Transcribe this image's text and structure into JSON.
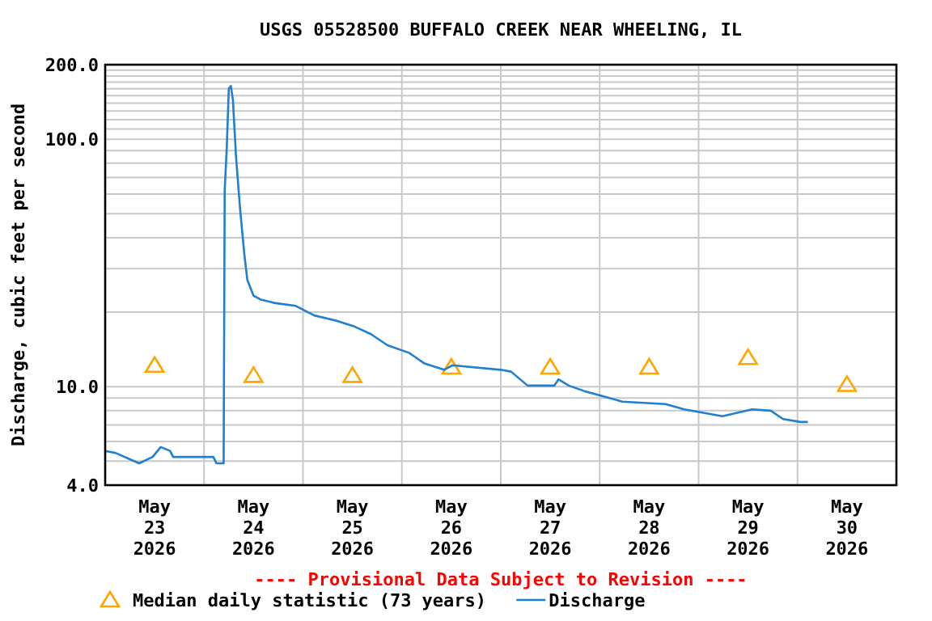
{
  "chart_data": {
    "type": "line",
    "title": "USGS 05528500 BUFFALO CREEK NEAR WHEELING, IL",
    "ylabel": "Discharge, cubic feet per second",
    "annotations": [
      "---- Provisional Data Subject to Revision ----"
    ],
    "log": "y",
    "grid": true,
    "legend": "bottom",
    "xlim": [
      "2026-05-23T00:00",
      "2026-05-31T00:00"
    ],
    "xticks": [
      {
        "value": "2026-05-23T00:00",
        "label": null
      },
      {
        "value": "2026-05-24T00:00",
        "label": null
      },
      {
        "value": "2026-05-25T00:00",
        "label": null
      },
      {
        "value": "2026-05-26T00:00",
        "label": null
      },
      {
        "value": "2026-05-27T00:00",
        "label": null
      },
      {
        "value": "2026-05-28T00:00",
        "label": null
      },
      {
        "value": "2026-05-29T00:00",
        "label": null
      },
      {
        "value": "2026-05-30T00:00",
        "label": null
      },
      {
        "value": "2026-05-31T00:00",
        "label": null
      },
      {
        "value": "2026-05-23T12:00",
        "label": "May\n23\n2026"
      },
      {
        "value": "2026-05-24T12:00",
        "label": "May\n24\n2026"
      },
      {
        "value": "2026-05-25T12:00",
        "label": "May\n25\n2026"
      },
      {
        "value": "2026-05-26T12:00",
        "label": "May\n26\n2026"
      },
      {
        "value": "2026-05-27T12:00",
        "label": "May\n27\n2026"
      },
      {
        "value": "2026-05-28T12:00",
        "label": "May\n28\n2026"
      },
      {
        "value": "2026-05-29T12:00",
        "label": "May\n29\n2026"
      },
      {
        "value": "2026-05-30T12:00",
        "label": "May\n30\n2026"
      }
    ],
    "ylim": [
      4,
      200
    ],
    "yticks": [
      {
        "value": 4,
        "label": "4.0"
      },
      {
        "value": 5,
        "label": null
      },
      {
        "value": 6,
        "label": null
      },
      {
        "value": 7,
        "label": null
      },
      {
        "value": 8,
        "label": null
      },
      {
        "value": 9,
        "label": null
      },
      {
        "value": 10,
        "label": "10.0"
      },
      {
        "value": 20,
        "label": null
      },
      {
        "value": 30,
        "label": null
      },
      {
        "value": 40,
        "label": null
      },
      {
        "value": 50,
        "label": null
      },
      {
        "value": 60,
        "label": null
      },
      {
        "value": 70,
        "label": null
      },
      {
        "value": 80,
        "label": null
      },
      {
        "value": 90,
        "label": null
      },
      {
        "value": 100,
        "label": "100.0"
      },
      {
        "value": 110,
        "label": null
      },
      {
        "value": 120,
        "label": null
      },
      {
        "value": 130,
        "label": null
      },
      {
        "value": 140,
        "label": null
      },
      {
        "value": 150,
        "label": null
      },
      {
        "value": 160,
        "label": null
      },
      {
        "value": 170,
        "label": null
      },
      {
        "value": 180,
        "label": null
      },
      {
        "value": 190,
        "label": null
      },
      {
        "value": 200,
        "label": "200.0"
      }
    ],
    "series": [
      {
        "name": "Median daily statistic (73 years)",
        "type": "scatter",
        "marker": "triangle",
        "color": "#ffa500",
        "x": [
          "2026-05-23T12:00",
          "2026-05-24T12:00",
          "2026-05-25T12:00",
          "2026-05-26T12:00",
          "2026-05-27T12:00",
          "2026-05-28T12:00",
          "2026-05-29T12:00",
          "2026-05-30T12:00"
        ],
        "values": [
          12.2,
          11.1,
          11.1,
          12.0,
          12.0,
          12.0,
          13.1,
          10.2
        ]
      },
      {
        "name": "Discharge",
        "type": "line",
        "color": "#1f7fd0",
        "x": [
          "2026-05-23T00:00",
          "2026-05-23T02:30",
          "2026-05-23T08:15",
          "2026-05-23T11:30",
          "2026-05-23T13:30",
          "2026-05-23T15:45",
          "2026-05-23T16:30",
          "2026-05-24T02:15",
          "2026-05-24T03:00",
          "2026-05-24T04:45",
          "2026-05-24T05:00",
          "2026-05-24T05:30",
          "2026-05-24T06:00",
          "2026-05-24T06:30",
          "2026-05-24T07:00",
          "2026-05-24T07:45",
          "2026-05-24T08:45",
          "2026-05-24T09:45",
          "2026-05-24T10:30",
          "2026-05-24T12:00",
          "2026-05-24T13:45",
          "2026-05-24T17:00",
          "2026-05-24T22:15",
          "2026-05-25T02:45",
          "2026-05-25T08:00",
          "2026-05-25T12:30",
          "2026-05-25T16:30",
          "2026-05-25T20:30",
          "2026-05-26T01:45",
          "2026-05-26T05:30",
          "2026-05-26T10:15",
          "2026-05-26T12:15",
          "2026-05-27T00:00",
          "2026-05-27T02:30",
          "2026-05-27T06:30",
          "2026-05-27T13:00",
          "2026-05-27T14:00",
          "2026-05-27T16:30",
          "2026-05-27T20:15",
          "2026-05-28T00:15",
          "2026-05-28T05:30",
          "2026-05-28T16:00",
          "2026-05-28T20:30",
          "2026-05-29T05:45",
          "2026-05-29T10:15",
          "2026-05-29T13:00",
          "2026-05-29T17:30",
          "2026-05-29T20:30",
          "2026-05-30T00:45",
          "2026-05-30T02:30"
        ],
        "values": [
          5.5,
          5.4,
          4.9,
          5.2,
          5.7,
          5.5,
          5.2,
          5.2,
          4.9,
          4.9,
          62,
          92,
          160,
          164,
          144,
          85,
          52,
          34.5,
          27,
          23.3,
          22.5,
          21.8,
          21.2,
          19.4,
          18.5,
          17.5,
          16.3,
          14.7,
          13.7,
          12.4,
          11.7,
          12.2,
          11.7,
          11.5,
          10.1,
          10.1,
          10.7,
          10.1,
          9.6,
          9.2,
          8.7,
          8.5,
          8.1,
          7.6,
          7.9,
          8.1,
          8.0,
          7.4,
          7.2,
          7.2
        ]
      }
    ]
  }
}
